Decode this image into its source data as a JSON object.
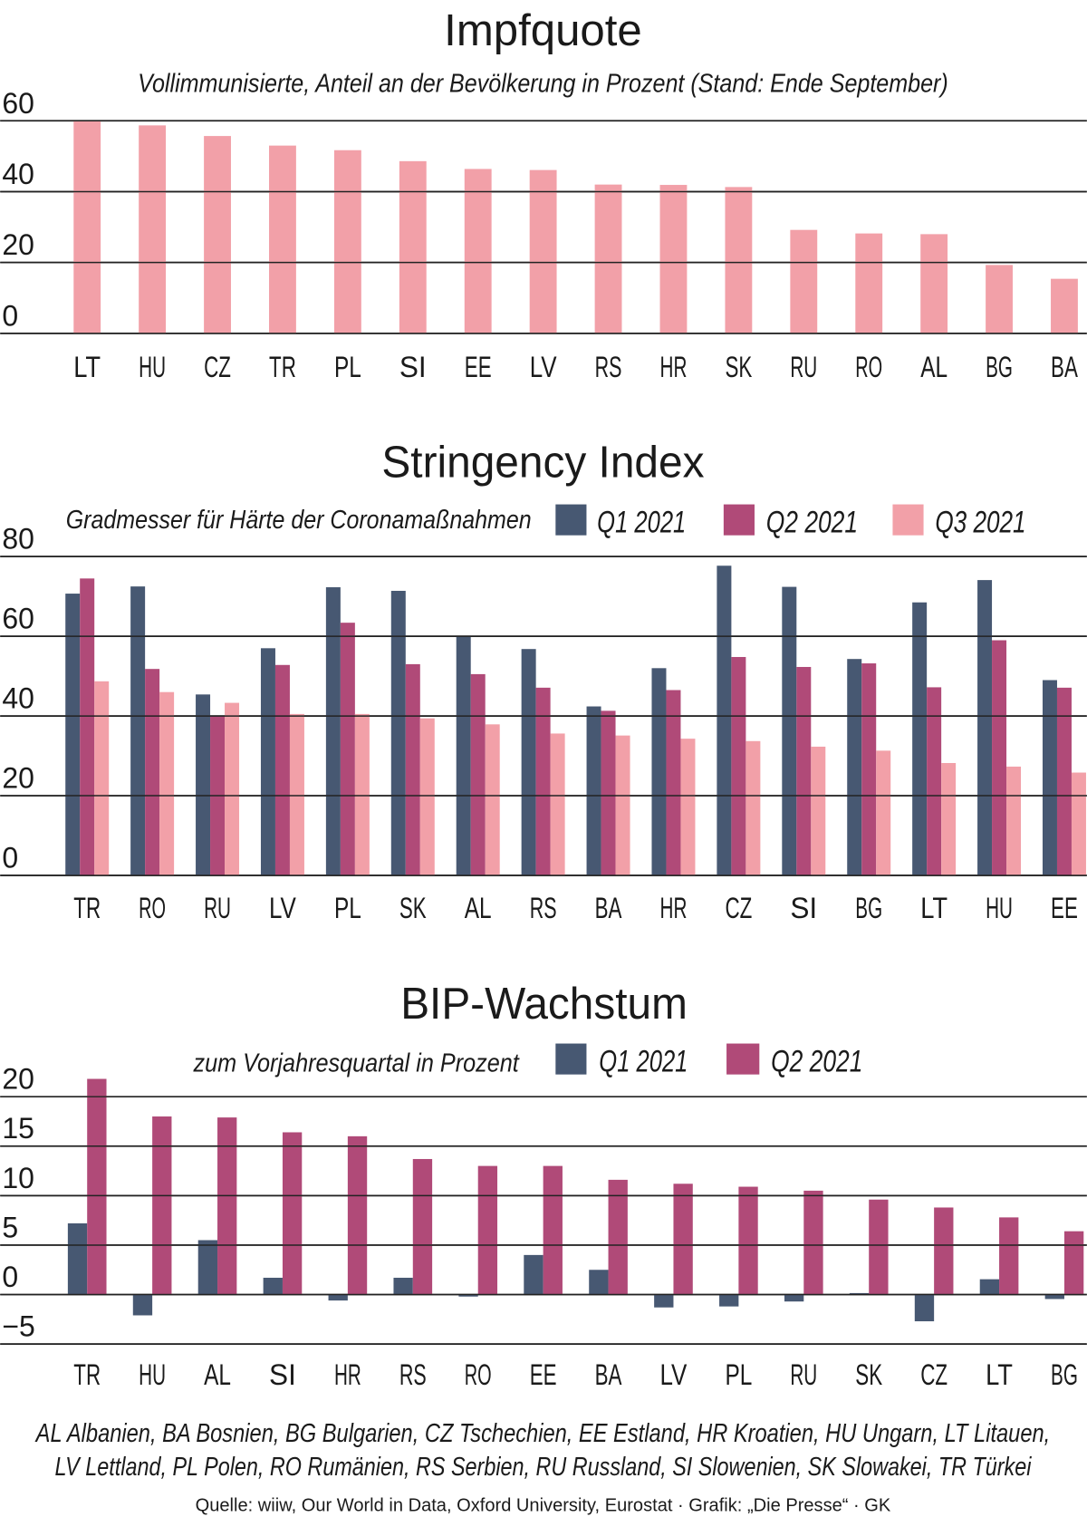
{
  "colors": {
    "q1": "#475872",
    "q2": "#b04a78",
    "q3": "#f2a0a8",
    "impf": "#f2a0a8"
  },
  "chart_data": [
    {
      "type": "bar",
      "title": "Impfquote",
      "subtitle": "Vollimmunisierte, Anteil an der Bevölkerung in Prozent (Stand: Ende September)",
      "categories": [
        "LT",
        "HU",
        "CZ",
        "TR",
        "PL",
        "SI",
        "EE",
        "LV",
        "RS",
        "HR",
        "SK",
        "RU",
        "RO",
        "AL",
        "BG",
        "BA"
      ],
      "series": [
        {
          "values": [
            60.2,
            58.7,
            55.7,
            53.0,
            51.7,
            48.6,
            46.4,
            46.1,
            42.0,
            41.9,
            41.3,
            29.2,
            28.2,
            28.0,
            19.3,
            15.4
          ]
        }
      ],
      "yticks": [
        "0",
        "20",
        "40",
        "60"
      ],
      "ylim": [
        0,
        60
      ],
      "grid": true
    },
    {
      "type": "bar",
      "title": "Stringency Index",
      "subtitle": "Gradmesser für Härte der Coronamaßnahmen",
      "categories": [
        "TR",
        "RO",
        "RU",
        "LV",
        "PL",
        "SK",
        "AL",
        "RS",
        "BA",
        "HR",
        "CZ",
        "SI",
        "BG",
        "LT",
        "HU",
        "EE"
      ],
      "series": [
        {
          "name": "Q1 2021",
          "values": [
            70.7,
            72.5,
            45.4,
            57.0,
            72.3,
            71.4,
            60.0,
            56.8,
            42.4,
            52.0,
            77.7,
            72.4,
            54.3,
            68.5,
            74.1,
            49.0
          ]
        },
        {
          "name": "Q2 2021",
          "values": [
            74.5,
            51.8,
            40.1,
            52.8,
            63.4,
            53.0,
            50.5,
            47.1,
            41.3,
            46.5,
            54.8,
            52.3,
            53.2,
            47.2,
            59.0,
            47.1
          ]
        },
        {
          "name": "Q3 2021",
          "values": [
            48.7,
            46.0,
            43.3,
            40.5,
            40.5,
            39.4,
            37.9,
            35.6,
            35.1,
            34.3,
            33.7,
            32.3,
            31.3,
            28.2,
            27.3,
            25.8
          ]
        }
      ],
      "yticks": [
        "0",
        "20",
        "40",
        "60",
        "80"
      ],
      "ylim": [
        0,
        80
      ],
      "legend": "top-right",
      "grid": true
    },
    {
      "type": "bar",
      "title": "BIP-Wachstum",
      "subtitle": "zum Vorjahresquartal in Prozent",
      "categories": [
        "TR",
        "HU",
        "AL",
        "SI",
        "HR",
        "RS",
        "RO",
        "EE",
        "BA",
        "LV",
        "PL",
        "RU",
        "SK",
        "CZ",
        "LT",
        "BG"
      ],
      "series": [
        {
          "name": "Q1 2021",
          "values": [
            7.2,
            -2.1,
            5.5,
            1.7,
            -0.6,
            1.7,
            -0.2,
            4.0,
            2.5,
            -1.3,
            -1.2,
            -0.7,
            0.15,
            -2.7,
            1.55,
            -0.45
          ]
        },
        {
          "name": "Q2 2021",
          "values": [
            21.8,
            18.0,
            17.9,
            16.4,
            16.0,
            13.7,
            13.0,
            13.0,
            11.6,
            11.2,
            10.9,
            10.5,
            9.6,
            8.8,
            7.8,
            6.4
          ]
        }
      ],
      "yticks": [
        "−5",
        "0",
        "5",
        "10",
        "15",
        "20"
      ],
      "ylim": [
        -5,
        20
      ],
      "legend": "top-right",
      "grid": true
    }
  ],
  "footer": {
    "legend_line1": "AL Albanien, BA Bosnien, BG Bulgarien, CZ Tschechien, EE Estland, HR Kroatien, HU Ungarn, LT Litauen,",
    "legend_line2": "LV Lettland, PL Polen, RO Rumänien, RS Serbien, RU Russland, SI Slowenien, SK Slowakei, TR Türkei",
    "source": "Quelle: wiiw, Our World in Data, Oxford University, Eurostat · Grafik: „Die Presse“ · GK"
  }
}
